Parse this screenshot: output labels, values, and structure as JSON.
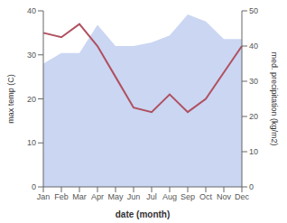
{
  "chart_data": {
    "type": "line",
    "xlabel": "date (month)",
    "ylabel": "max temp (C)",
    "y2label": "med. precipitation (kg/m2)",
    "categories": [
      "Jan",
      "Feb",
      "Mar",
      "Apr",
      "May",
      "Jun",
      "Jul",
      "Aug",
      "Sep",
      "Oct",
      "Nov",
      "Dec"
    ],
    "series": [
      {
        "type": "area",
        "axis": "y2",
        "color": "#b8c8ee",
        "values": [
          35,
          38,
          38,
          46,
          40,
          40,
          41,
          43,
          49,
          47,
          42,
          42
        ]
      },
      {
        "type": "line",
        "color": "#b05060",
        "values": [
          35,
          34,
          37,
          32,
          25,
          18,
          17,
          21,
          17,
          20,
          26,
          32
        ]
      }
    ],
    "ylim": [
      0,
      40
    ],
    "yticks": [
      0,
      10,
      20,
      30,
      40
    ],
    "y2lim": [
      0,
      50
    ],
    "y2ticks": [
      0,
      10,
      20,
      30,
      40,
      50
    ],
    "grid": false
  }
}
